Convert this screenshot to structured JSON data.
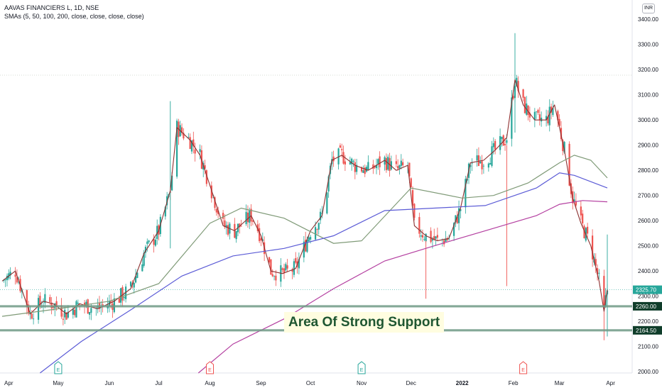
{
  "header": {
    "symbol_line": "AAVAS FINANCIERS L, 1D, NSE",
    "indicator_line": "SMAs (5, 50, 100, 200, close, close, close, close)"
  },
  "currency": "INR",
  "annotation": "Area Of Strong Support",
  "colors": {
    "up": "#26a69a",
    "down": "#ef5350",
    "sma5": "#8b2f2f",
    "sma50": "#7f9a77",
    "sma100": "#5b5bd6",
    "sma200": "#b43fa0",
    "support": "#1e5631",
    "price_label": "#26a69a",
    "level_label": "#0f3d2a"
  },
  "chart_data": {
    "type": "candlestick",
    "title": "AAVAS FINANCIERS L, 1D, NSE",
    "x_tick_labels": [
      "Apr",
      "May",
      "Jun",
      "Jul",
      "Aug",
      "Sep",
      "Oct",
      "Nov",
      "Dec",
      "2022",
      "Feb",
      "Mar",
      "Apr"
    ],
    "y_tick_labels": [
      "2000.00",
      "2100.00",
      "2200.00",
      "2300.00",
      "2400.00",
      "2500.00",
      "2600.00",
      "2700.00",
      "2800.00",
      "2900.00",
      "3000.00",
      "3100.00",
      "3200.00",
      "3300.00",
      "3400.00"
    ],
    "ylim": [
      1995,
      3460
    ],
    "grid": false,
    "price_path": [
      [
        "2021-03-28",
        2360
      ],
      [
        "2021-04-05",
        2400
      ],
      [
        "2021-04-14",
        2230
      ],
      [
        "2021-04-22",
        2280
      ],
      [
        "2021-04-28",
        2270
      ],
      [
        "2021-05-06",
        2230
      ],
      [
        "2021-05-14",
        2270
      ],
      [
        "2021-05-25",
        2250
      ],
      [
        "2021-06-04",
        2280
      ],
      [
        "2021-06-14",
        2330
      ],
      [
        "2021-06-22",
        2470
      ],
      [
        "2021-07-01",
        2560
      ],
      [
        "2021-07-08",
        2720
      ],
      [
        "2021-07-12",
        2970
      ],
      [
        "2021-07-20",
        2920
      ],
      [
        "2021-07-26",
        2860
      ],
      [
        "2021-08-03",
        2700
      ],
      [
        "2021-08-09",
        2580
      ],
      [
        "2021-08-16",
        2560
      ],
      [
        "2021-08-26",
        2620
      ],
      [
        "2021-09-01",
        2540
      ],
      [
        "2021-09-07",
        2400
      ],
      [
        "2021-09-14",
        2390
      ],
      [
        "2021-09-22",
        2410
      ],
      [
        "2021-10-01",
        2560
      ],
      [
        "2021-10-08",
        2620
      ],
      [
        "2021-10-14",
        2840
      ],
      [
        "2021-10-20",
        2860
      ],
      [
        "2021-10-28",
        2820
      ],
      [
        "2021-11-05",
        2800
      ],
      [
        "2021-11-15",
        2840
      ],
      [
        "2021-11-22",
        2800
      ],
      [
        "2021-11-29",
        2820
      ],
      [
        "2021-12-03",
        2580
      ],
      [
        "2021-12-10",
        2540
      ],
      [
        "2021-12-17",
        2520
      ],
      [
        "2021-12-24",
        2530
      ],
      [
        "2021-12-31",
        2650
      ],
      [
        "2022-01-06",
        2830
      ],
      [
        "2022-01-14",
        2840
      ],
      [
        "2022-01-21",
        2880
      ],
      [
        "2022-01-28",
        2930
      ],
      [
        "2022-02-02",
        3160
      ],
      [
        "2022-02-07",
        3060
      ],
      [
        "2022-02-14",
        3000
      ],
      [
        "2022-02-21",
        3000
      ],
      [
        "2022-02-26",
        3060
      ],
      [
        "2022-03-04",
        2880
      ],
      [
        "2022-03-09",
        2690
      ],
      [
        "2022-03-14",
        2590
      ],
      [
        "2022-03-20",
        2500
      ],
      [
        "2022-03-25",
        2360
      ],
      [
        "2022-03-28",
        2240
      ],
      [
        "2022-03-30",
        2325.7
      ]
    ],
    "series": [
      {
        "name": "SMA 50",
        "points": [
          [
            "2021-03-28",
            2220
          ],
          [
            "2021-05-01",
            2250
          ],
          [
            "2021-06-01",
            2280
          ],
          [
            "2021-07-01",
            2350
          ],
          [
            "2021-08-01",
            2590
          ],
          [
            "2021-08-20",
            2650
          ],
          [
            "2021-09-15",
            2610
          ],
          [
            "2021-10-15",
            2510
          ],
          [
            "2021-11-01",
            2520
          ],
          [
            "2021-12-01",
            2730
          ],
          [
            "2022-01-01",
            2690
          ],
          [
            "2022-01-20",
            2700
          ],
          [
            "2022-02-10",
            2750
          ],
          [
            "2022-03-01",
            2830
          ],
          [
            "2022-03-10",
            2860
          ],
          [
            "2022-03-20",
            2840
          ],
          [
            "2022-03-30",
            2770
          ]
        ]
      },
      {
        "name": "SMA 100",
        "points": [
          [
            "2021-04-20",
            1995
          ],
          [
            "2021-05-15",
            2120
          ],
          [
            "2021-06-15",
            2250
          ],
          [
            "2021-07-15",
            2380
          ],
          [
            "2021-08-15",
            2460
          ],
          [
            "2021-09-15",
            2490
          ],
          [
            "2021-10-15",
            2540
          ],
          [
            "2021-11-15",
            2640
          ],
          [
            "2021-12-15",
            2650
          ],
          [
            "2022-01-15",
            2660
          ],
          [
            "2022-02-15",
            2730
          ],
          [
            "2022-03-01",
            2790
          ],
          [
            "2022-03-10",
            2780
          ],
          [
            "2022-03-30",
            2730
          ]
        ]
      },
      {
        "name": "SMA 200",
        "points": [
          [
            "2021-07-25",
            1995
          ],
          [
            "2021-08-15",
            2110
          ],
          [
            "2021-09-15",
            2210
          ],
          [
            "2021-10-15",
            2330
          ],
          [
            "2021-11-15",
            2440
          ],
          [
            "2021-12-15",
            2500
          ],
          [
            "2022-01-15",
            2560
          ],
          [
            "2022-02-15",
            2620
          ],
          [
            "2022-03-01",
            2665
          ],
          [
            "2022-03-15",
            2680
          ],
          [
            "2022-03-30",
            2675
          ]
        ]
      }
    ],
    "horizontal_levels": [
      2260.0,
      2164.5
    ],
    "last_price": 2325.7,
    "price_labels": [
      "2325.70",
      "2260.00",
      "2164.50"
    ],
    "earnings_markers": [
      {
        "date": "2021-05-01",
        "type": "up",
        "label": "E"
      },
      {
        "date": "2021-08-01",
        "type": "down",
        "label": "E"
      },
      {
        "date": "2021-11-01",
        "type": "up",
        "label": "E"
      },
      {
        "date": "2022-02-07",
        "type": "down",
        "label": "E"
      }
    ]
  }
}
